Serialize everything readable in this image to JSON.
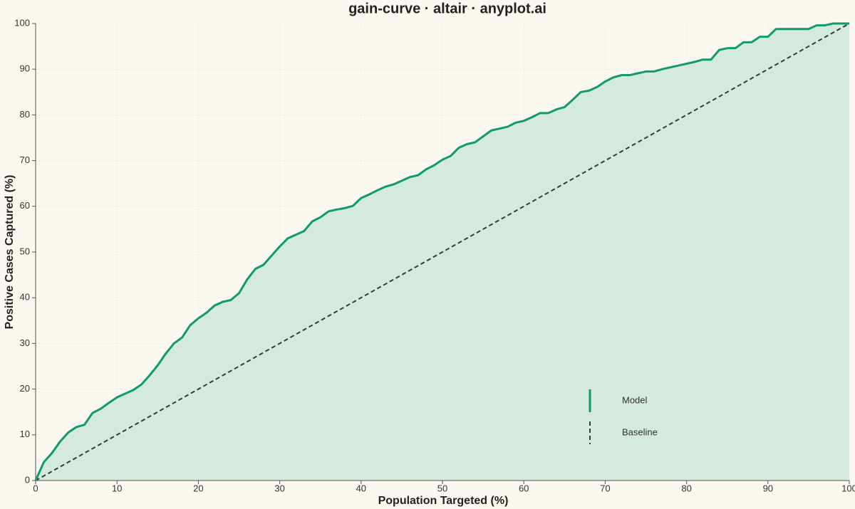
{
  "chart_data": {
    "type": "line",
    "title": "gain-curve · altair · anyplot.ai",
    "xlabel": "Population Targeted (%)",
    "ylabel": "Positive Cases Captured (%)",
    "xlim": [
      0,
      100
    ],
    "ylim": [
      0,
      100
    ],
    "xticks": [
      0,
      10,
      20,
      30,
      40,
      50,
      60,
      70,
      80,
      90,
      100
    ],
    "yticks": [
      0,
      10,
      20,
      30,
      40,
      50,
      60,
      70,
      80,
      90,
      100
    ],
    "grid": true,
    "legend": "bottom-right",
    "series": [
      {
        "name": "Model",
        "color": "#119a6c",
        "fill": "#d4eadc",
        "dash": false,
        "x": [
          0,
          1,
          2,
          3,
          4,
          5,
          6,
          7,
          8,
          9,
          10,
          11,
          12,
          13,
          14,
          15,
          16,
          17,
          18,
          19,
          20,
          21,
          22,
          23,
          24,
          25,
          26,
          27,
          28,
          29,
          30,
          31,
          32,
          33,
          34,
          35,
          36,
          37,
          38,
          39,
          40,
          41,
          42,
          43,
          44,
          45,
          46,
          47,
          48,
          49,
          50,
          51,
          52,
          53,
          54,
          55,
          56,
          57,
          58,
          59,
          60,
          61,
          62,
          63,
          64,
          65,
          66,
          67,
          68,
          69,
          70,
          71,
          72,
          73,
          74,
          75,
          76,
          77,
          78,
          79,
          80,
          81,
          82,
          83,
          84,
          85,
          86,
          87,
          88,
          89,
          90,
          91,
          92,
          93,
          94,
          95,
          96,
          97,
          98,
          99,
          100
        ],
        "values": [
          0,
          4,
          6,
          8.5,
          10.5,
          11.7,
          12.2,
          14.8,
          15.7,
          17,
          18.2,
          19,
          19.8,
          21,
          23,
          25.2,
          27.8,
          30,
          31.3,
          34,
          35.5,
          36.7,
          38.3,
          39.1,
          39.5,
          41,
          44,
          46.3,
          47.2,
          49.2,
          51.2,
          53,
          53.8,
          54.6,
          56.7,
          57.6,
          58.9,
          59.3,
          59.6,
          60.1,
          61.8,
          62.6,
          63.5,
          64.3,
          64.8,
          65.6,
          66.4,
          66.8,
          68.1,
          69,
          70.2,
          71,
          72.8,
          73.6,
          74,
          75.3,
          76.6,
          77,
          77.4,
          78.3,
          78.7,
          79.5,
          80.4,
          80.4,
          81.2,
          81.7,
          83.3,
          85,
          85.3,
          86.1,
          87.3,
          88.2,
          88.7,
          88.7,
          89.1,
          89.5,
          89.5,
          90,
          90.4,
          90.8,
          91.2,
          91.6,
          92.1,
          92.1,
          94.2,
          94.6,
          94.6,
          95.9,
          95.9,
          97.1,
          97.1,
          98.8,
          98.8,
          98.8,
          98.8,
          98.8,
          99.6,
          99.6,
          100,
          100,
          100
        ]
      },
      {
        "name": "Baseline",
        "color": "#3a3a3a",
        "dash": true,
        "x": [
          0,
          100
        ],
        "values": [
          0,
          100
        ]
      }
    ]
  }
}
